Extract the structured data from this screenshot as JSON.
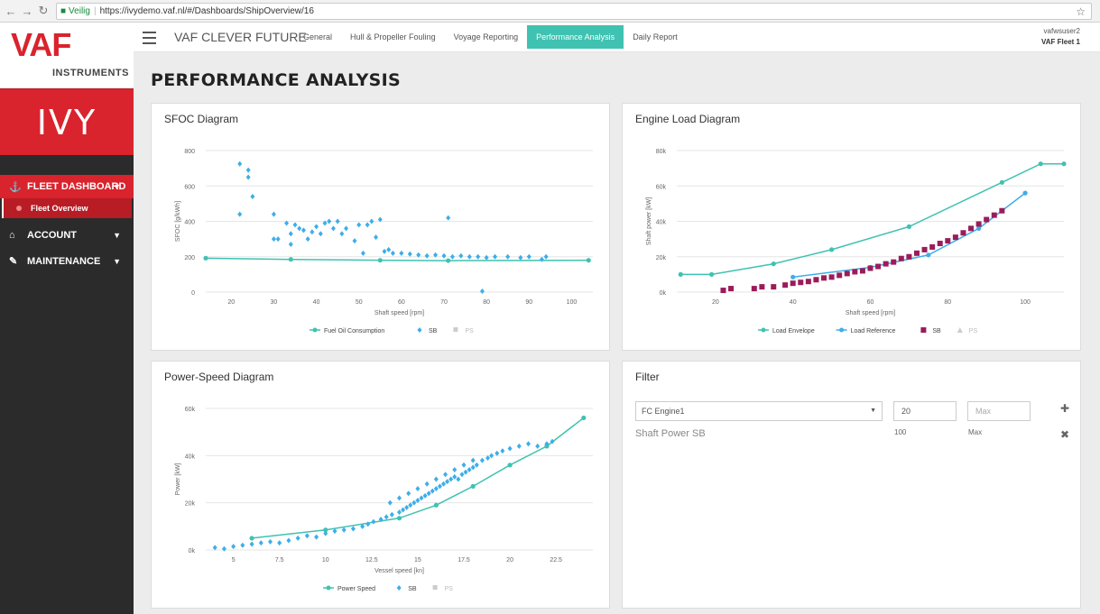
{
  "browser": {
    "secure_label": "Veilig",
    "url": "https://ivydemo.vaf.nl/#/Dashboards/ShipOverview/16"
  },
  "sidebar": {
    "logo_text": "VAF",
    "logo_sub": "INSTRUMENTS",
    "product": "IVY",
    "items": [
      {
        "label": "FLEET DASHBOARD",
        "icon": "ship-icon"
      },
      {
        "label": "ACCOUNT",
        "icon": "home-icon"
      },
      {
        "label": "MAINTENANCE",
        "icon": "edit-icon"
      }
    ],
    "sub_items": [
      {
        "label": "Fleet Overview"
      }
    ]
  },
  "header": {
    "brand": "VAF CLEVER FUTURE",
    "tabs": [
      {
        "label": "General"
      },
      {
        "label": "Hull & Propeller Fouling"
      },
      {
        "label": "Voyage Reporting"
      },
      {
        "label": "Performance Analysis"
      },
      {
        "label": "Daily Report"
      }
    ],
    "active_tab": "Performance Analysis",
    "user": "vafwsuser2",
    "fleet": "VAF Fleet 1"
  },
  "page": {
    "title": "PERFORMANCE ANALYSIS"
  },
  "colors": {
    "accent": "#3fc2b1",
    "brand_red": "#d9232d",
    "sb_blue": "#3daee9",
    "sb_purple": "#9b1c5a"
  },
  "filter": {
    "title": "Filter",
    "select_value": "FC Engine1",
    "min_value": "20",
    "max_placeholder": "Max",
    "label": "Shaft Power SB",
    "min_hint": "100",
    "max_hint": "Max",
    "add_icon": "plus-icon",
    "remove_icon": "close-icon"
  },
  "chart_data": [
    {
      "type": "scatter",
      "title": "SFOC Diagram",
      "xlabel": "Shaft speed [rpm]",
      "ylabel": "SFOC [g/kWh]",
      "xlim": [
        14,
        105
      ],
      "ylim": [
        0,
        800
      ],
      "x_ticks": [
        20,
        30,
        40,
        50,
        60,
        70,
        80,
        90,
        100
      ],
      "y_ticks": [
        0,
        200,
        400,
        600,
        800
      ],
      "grid": true,
      "legend": [
        "Fuel Oil Consumption",
        "SB",
        "PS"
      ],
      "series": [
        {
          "name": "Fuel Oil Consumption",
          "kind": "line",
          "x": [
            14,
            34,
            55,
            71,
            104
          ],
          "y": [
            192,
            185,
            180,
            178,
            180
          ]
        },
        {
          "name": "SB",
          "kind": "scatter",
          "x": [
            22,
            22,
            24,
            24,
            25,
            30,
            30,
            31,
            33,
            34,
            34,
            35,
            36,
            37,
            38,
            39,
            40,
            41,
            42,
            43,
            44,
            45,
            46,
            47,
            49,
            50,
            51,
            52,
            53,
            54,
            55,
            56,
            57,
            58,
            60,
            62,
            64,
            66,
            68,
            70,
            71,
            72,
            74,
            76,
            78,
            79,
            80,
            82,
            85,
            88,
            90,
            93,
            94
          ],
          "y": [
            725,
            440,
            690,
            650,
            540,
            440,
            300,
            300,
            390,
            270,
            330,
            380,
            360,
            350,
            300,
            340,
            370,
            330,
            390,
            400,
            360,
            400,
            330,
            360,
            290,
            380,
            220,
            380,
            400,
            310,
            410,
            230,
            240,
            220,
            220,
            215,
            210,
            205,
            210,
            205,
            420,
            200,
            205,
            200,
            200,
            5,
            195,
            200,
            200,
            195,
            200,
            185,
            200
          ]
        },
        {
          "name": "PS",
          "kind": "scatter",
          "x": [],
          "y": []
        }
      ]
    },
    {
      "type": "scatter",
      "title": "Engine Load Diagram",
      "xlabel": "Shaft speed [rpm]",
      "ylabel": "Shaft power [kW]",
      "xlim": [
        10,
        110
      ],
      "ylim": [
        0,
        80000
      ],
      "x_ticks": [
        20,
        40,
        60,
        80,
        100
      ],
      "y_ticks": [
        0,
        20000,
        40000,
        60000,
        80000
      ],
      "y_tick_labels": [
        "0k",
        "20k",
        "40k",
        "60k",
        "80k"
      ],
      "grid": true,
      "legend": [
        "Load Envelope",
        "Load Reference",
        "SB",
        "PS"
      ],
      "series": [
        {
          "name": "Load Envelope",
          "kind": "line",
          "x": [
            11,
            19,
            35,
            50,
            70,
            94,
            104,
            110
          ],
          "y": [
            10000,
            10000,
            16000,
            24000,
            37000,
            62000,
            72500,
            72500
          ]
        },
        {
          "name": "Load Reference",
          "kind": "line",
          "x": [
            40,
            60,
            75,
            88,
            100
          ],
          "y": [
            8500,
            14000,
            21000,
            36000,
            56000
          ]
        },
        {
          "name": "SB",
          "kind": "scatter",
          "x": [
            22,
            24,
            30,
            32,
            35,
            38,
            40,
            42,
            44,
            46,
            48,
            50,
            52,
            54,
            56,
            58,
            60,
            62,
            64,
            66,
            68,
            70,
            72,
            74,
            76,
            78,
            80,
            82,
            84,
            86,
            88,
            90,
            92,
            94
          ],
          "y": [
            1000,
            2000,
            2000,
            3000,
            3000,
            4000,
            5000,
            5500,
            6000,
            7000,
            8000,
            8500,
            9500,
            10500,
            11500,
            12000,
            13500,
            14500,
            16000,
            17000,
            19000,
            20000,
            22000,
            24000,
            25500,
            27500,
            29000,
            31000,
            33500,
            36000,
            38500,
            41000,
            43500,
            46000
          ]
        },
        {
          "name": "PS",
          "kind": "scatter",
          "x": [],
          "y": []
        }
      ]
    },
    {
      "type": "scatter",
      "title": "Power-Speed Diagram",
      "xlabel": "Vessel speed [kn]",
      "ylabel": "Power [kW]",
      "xlim": [
        3.5,
        24.5
      ],
      "ylim": [
        0,
        60000
      ],
      "x_ticks": [
        5,
        7.5,
        10,
        12.5,
        15,
        17.5,
        20,
        22.5
      ],
      "y_ticks": [
        0,
        20000,
        40000,
        60000
      ],
      "y_tick_labels": [
        "0k",
        "20k",
        "40k",
        "60k"
      ],
      "grid": true,
      "legend": [
        "Power Speed",
        "SB",
        "PS"
      ],
      "series": [
        {
          "name": "Power Speed",
          "kind": "line",
          "x": [
            6,
            10,
            14,
            16,
            18,
            20,
            22,
            24
          ],
          "y": [
            5000,
            8500,
            13500,
            19000,
            27000,
            36000,
            44000,
            56000
          ]
        },
        {
          "name": "SB",
          "kind": "scatter",
          "x": [
            4,
            4.5,
            5,
            5.5,
            6,
            6.5,
            7,
            7.5,
            8,
            8.5,
            9,
            9.5,
            10,
            10.5,
            11,
            11.5,
            12,
            12.3,
            12.6,
            13,
            13.3,
            13.6,
            14,
            14.2,
            14.4,
            14.6,
            14.8,
            15,
            15.2,
            15.4,
            15.6,
            15.8,
            16,
            16.2,
            16.4,
            16.6,
            16.8,
            17,
            17.2,
            17.4,
            17.6,
            17.8,
            18,
            18.2,
            18.5,
            18.8,
            19,
            19.3,
            19.6,
            20,
            20.5,
            21,
            21.5,
            22,
            22.3,
            13.5,
            14,
            14.5,
            15,
            15.5,
            16,
            16.5,
            17,
            17.5,
            18
          ],
          "y": [
            1000,
            500,
            1500,
            2000,
            2500,
            3000,
            3500,
            3000,
            4000,
            5000,
            6000,
            5500,
            7000,
            8000,
            8500,
            9000,
            10000,
            11000,
            12000,
            13000,
            14000,
            15000,
            16000,
            17000,
            18000,
            19000,
            20000,
            21000,
            22000,
            23000,
            24000,
            25000,
            26000,
            27000,
            28000,
            29000,
            30000,
            31000,
            30000,
            32000,
            33000,
            34000,
            35000,
            36000,
            38000,
            39000,
            40000,
            41000,
            42000,
            43000,
            44000,
            45000,
            44000,
            45000,
            46000,
            20000,
            22000,
            24000,
            26000,
            28000,
            30000,
            32000,
            34000,
            36000,
            38000
          ]
        },
        {
          "name": "PS",
          "kind": "scatter",
          "x": [],
          "y": []
        }
      ]
    }
  ]
}
